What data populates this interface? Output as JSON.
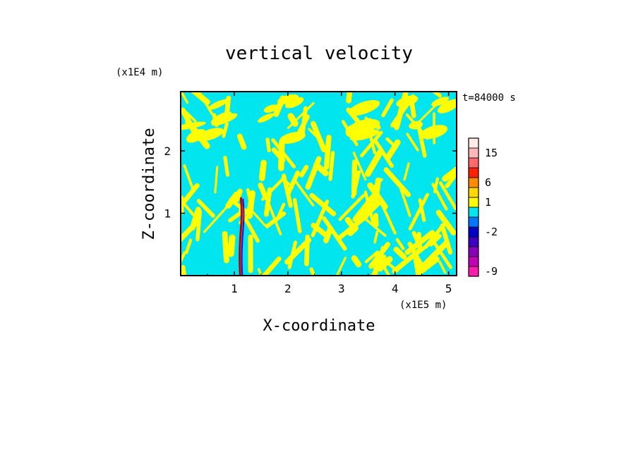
{
  "chart_data": {
    "type": "heatmap",
    "title": "vertical velocity",
    "xlabel": "X-coordinate",
    "ylabel": "Z-coordinate",
    "x_unit": "(x1E5 m)",
    "y_unit": "(x1E4 m)",
    "time_label": "t=84000 s",
    "xlim": [
      0,
      5.15
    ],
    "ylim": [
      0,
      2.95
    ],
    "x_ticks": [
      1,
      2,
      3,
      4,
      5
    ],
    "y_ticks": [
      1,
      2
    ],
    "x_tick_labels": [
      "1",
      "2",
      "3",
      "4",
      "5"
    ],
    "y_tick_labels": [
      "1",
      "2"
    ],
    "field_colors": {
      "positive": "#ffff00",
      "negative": "#00e5ee"
    },
    "jet_feature_x": 1.15,
    "colorbar": {
      "levels": [
        {
          "color": "#ff1dae",
          "label": "-9"
        },
        {
          "color": "#c400b8",
          "label": ""
        },
        {
          "color": "#8a00b8",
          "label": ""
        },
        {
          "color": "#3c00c2",
          "label": ""
        },
        {
          "color": "#0000c8",
          "label": "-2"
        },
        {
          "color": "#0078ff",
          "label": ""
        },
        {
          "color": "#00e5ee",
          "label": ""
        },
        {
          "color": "#ffff00",
          "label": "1"
        },
        {
          "color": "#ffd700",
          "label": ""
        },
        {
          "color": "#ff8c00",
          "label": "6"
        },
        {
          "color": "#ff2200",
          "label": ""
        },
        {
          "color": "#ff6a6a",
          "label": ""
        },
        {
          "color": "#ffb8b8",
          "label": "15"
        },
        {
          "color": "#ffeaea",
          "label": ""
        }
      ]
    }
  }
}
